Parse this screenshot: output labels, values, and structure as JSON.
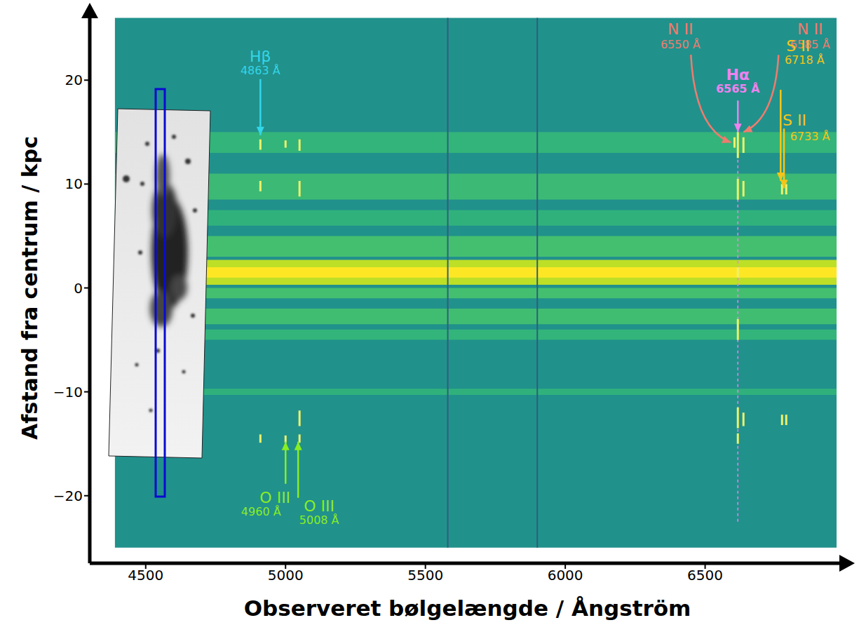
{
  "chart_data": {
    "type": "spectrum",
    "xlabel": "Observeret bølgelængde / Ångström",
    "ylabel": "Afstand fra centrum / kpc",
    "xlim": [
      4300,
      7000
    ],
    "ylim": [
      -26.5,
      26.5
    ],
    "xticks": [
      4500,
      5000,
      5500,
      6000,
      6500
    ],
    "yticks": [
      {
        "value": -20,
        "label": "−20"
      },
      {
        "value": -10,
        "label": "−10"
      },
      0,
      10,
      20
    ],
    "grid": false,
    "image_extent": {
      "x": [
        4390,
        6970
      ],
      "y": [
        -25,
        26
      ]
    },
    "bands": [
      {
        "y": [
          13,
          15
        ],
        "intensity": 0.3
      },
      {
        "y": [
          8.5,
          11
        ],
        "intensity": 0.35
      },
      {
        "y": [
          6,
          7.5
        ],
        "intensity": 0.28
      },
      {
        "y": [
          3,
          5
        ],
        "intensity": 0.4
      },
      {
        "y": [
          0.3,
          2.7
        ],
        "intensity": 0.8
      },
      {
        "y": [
          1,
          2
        ],
        "intensity": 1.0
      },
      {
        "y": [
          -1,
          0
        ],
        "intensity": 0.4
      },
      {
        "y": [
          -3.5,
          -2
        ],
        "intensity": 0.38
      },
      {
        "y": [
          -5,
          -4
        ],
        "intensity": 0.3
      },
      {
        "y": [
          -10.3,
          -9.7
        ],
        "intensity": 0.28
      }
    ],
    "sky_lines": [
      5580,
      5900
    ],
    "emission_lines": [
      {
        "x": 4910,
        "segments": [
          [
            13.3,
            14.3
          ],
          [
            9.3,
            10.3
          ],
          [
            -14.9,
            -14.1
          ]
        ]
      },
      {
        "x": 5000,
        "segments": [
          [
            13.5,
            14.2
          ],
          [
            -14.9,
            -14.2
          ]
        ]
      },
      {
        "x": 5050,
        "segments": [
          [
            13.2,
            14.3
          ],
          [
            8.8,
            10.3
          ],
          [
            -13.3,
            -11.8
          ],
          [
            -14.9,
            -14.1
          ]
        ]
      },
      {
        "x": 6605,
        "segments": [
          [
            13.5,
            14.5
          ]
        ]
      },
      {
        "x": 6617,
        "segments": [
          [
            12.5,
            15
          ],
          [
            8.5,
            10.5
          ],
          [
            1,
            2
          ],
          [
            -5,
            -3
          ],
          [
            -13.5,
            -11.5
          ],
          [
            -15,
            -14
          ]
        ],
        "trace": [
          -22.5,
          15
        ]
      },
      {
        "x": 6637,
        "segments": [
          [
            13,
            14.5
          ],
          [
            8.8,
            10.3
          ],
          [
            -13.3,
            -12
          ]
        ]
      },
      {
        "x": 6775,
        "segments": [
          [
            9,
            10
          ],
          [
            -13.2,
            -12.2
          ]
        ]
      },
      {
        "x": 6790,
        "segments": [
          [
            9,
            10
          ],
          [
            -13.2,
            -12.2
          ]
        ]
      }
    ],
    "annotations": [
      {
        "label": "Hβ",
        "sublabel": "4863 Å",
        "color": "#33d6e8",
        "x": 4910,
        "y": 14.7
      },
      {
        "label": "O III",
        "sublabel": "4960 Å",
        "color": "#88ee22",
        "x": 5000,
        "y": -14.8
      },
      {
        "label": "O III",
        "sublabel": "5008 Å",
        "color": "#88ee22",
        "x": 5045,
        "y": -14.8
      },
      {
        "label": "N II",
        "sublabel": "6550 Å",
        "color": "#f07c6e",
        "x": 6592,
        "y": 14.0
      },
      {
        "label": "Hα",
        "sublabel": "6565 Å",
        "color": "#ee82ee",
        "x": 6617,
        "y": 15.0
      },
      {
        "label": "N II",
        "sublabel": "6585 Å",
        "color": "#f07c6e",
        "x": 6637,
        "y": 15.0
      },
      {
        "label": "S II",
        "sublabel": "6718 Å",
        "color": "#f5c518",
        "x": 6770,
        "y": 10.3
      },
      {
        "label": "S II",
        "sublabel": "6733 Å",
        "color": "#f5c518",
        "x": 6782,
        "y": 9.6
      }
    ]
  }
}
